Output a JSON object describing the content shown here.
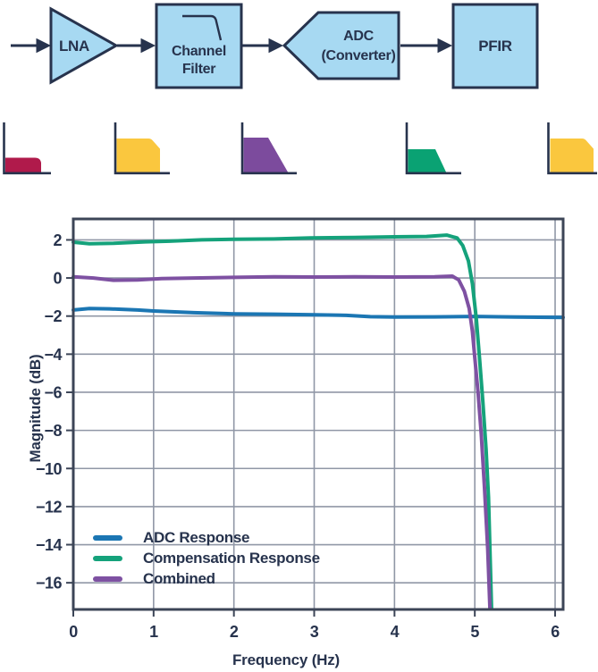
{
  "palette": {
    "block_fill": "#a7d9f2",
    "dark_navy": "#27334d",
    "plot_border": "#3c4557",
    "grid": "#9097a6"
  },
  "diagram": {
    "blocks": [
      {
        "id": "lna",
        "label": "LNA",
        "shape": "amplifier-triangle"
      },
      {
        "id": "channel-filter",
        "label_line1": "Channel",
        "label_line2": "Filter",
        "shape": "rect-with-lowpass-glyph"
      },
      {
        "id": "adc",
        "label_line1": "ADC",
        "label_line2": "(Converter)",
        "shape": "left-pointing-pentagon"
      },
      {
        "id": "pfir",
        "label": "PFIR",
        "shape": "rect"
      }
    ],
    "spectrum_icons": [
      {
        "name": "input-spectrum",
        "color": "#b01a4b",
        "shape": "low-flat-band"
      },
      {
        "name": "post-lna-spectrum",
        "color": "#fac73e",
        "shape": "wide-block-cut-corner"
      },
      {
        "name": "post-channel-filter-spectrum",
        "color": "#7c4b9d",
        "shape": "steep-trapezoid"
      },
      {
        "name": "post-adc-spectrum",
        "color": "#0aa273",
        "shape": "small-trapezoid"
      },
      {
        "name": "post-pfir-spectrum",
        "color": "#fac73e",
        "shape": "wide-block-cut-corner"
      }
    ]
  },
  "chart_data": {
    "type": "line",
    "title": "",
    "xlabel": "Frequency (Hz)",
    "ylabel": "Magnitude (dB)",
    "xlim": [
      0,
      6.1
    ],
    "ylim": [
      -17.4,
      3.1
    ],
    "x_ticks": [
      0,
      1,
      2,
      3,
      4,
      5,
      6
    ],
    "y_ticks": [
      2,
      0,
      -2,
      -4,
      -6,
      -8,
      -10,
      -12,
      -14,
      -16
    ],
    "grid": true,
    "legend_position": "lower-left",
    "series": [
      {
        "name": "ADC Response",
        "color": "#1b76b3",
        "points": [
          [
            0,
            -1.68
          ],
          [
            0.2,
            -1.6
          ],
          [
            0.45,
            -1.62
          ],
          [
            0.8,
            -1.68
          ],
          [
            1,
            -1.73
          ],
          [
            1.5,
            -1.82
          ],
          [
            2,
            -1.88
          ],
          [
            2.5,
            -1.9
          ],
          [
            3,
            -1.93
          ],
          [
            3.4,
            -1.96
          ],
          [
            3.7,
            -2.03
          ],
          [
            4,
            -2.05
          ],
          [
            4.5,
            -2.04
          ],
          [
            5,
            -2.02
          ],
          [
            5.5,
            -2.05
          ],
          [
            6.1,
            -2.07
          ]
        ]
      },
      {
        "name": "Compensation Response",
        "color": "#15a27b",
        "points": [
          [
            0,
            1.88
          ],
          [
            0.2,
            1.8
          ],
          [
            0.5,
            1.82
          ],
          [
            0.9,
            1.9
          ],
          [
            1.2,
            1.93
          ],
          [
            1.6,
            2.0
          ],
          [
            2,
            2.03
          ],
          [
            2.5,
            2.05
          ],
          [
            2.95,
            2.1
          ],
          [
            3.5,
            2.13
          ],
          [
            4,
            2.16
          ],
          [
            4.4,
            2.18
          ],
          [
            4.65,
            2.25
          ],
          [
            4.78,
            2.1
          ],
          [
            4.85,
            1.7
          ],
          [
            4.92,
            0.9
          ],
          [
            4.97,
            -0.3
          ],
          [
            5.02,
            -2.2
          ],
          [
            5.06,
            -4.3
          ],
          [
            5.1,
            -6.5
          ],
          [
            5.14,
            -9.0
          ],
          [
            5.17,
            -11.5
          ],
          [
            5.21,
            -17.5
          ]
        ]
      },
      {
        "name": "Combined",
        "color": "#7e51a2",
        "points": [
          [
            0,
            0.06
          ],
          [
            0.25,
            0.0
          ],
          [
            0.5,
            -0.12
          ],
          [
            0.8,
            -0.1
          ],
          [
            1.1,
            -0.03
          ],
          [
            1.5,
            0.0
          ],
          [
            2,
            0.03
          ],
          [
            2.5,
            0.06
          ],
          [
            3,
            0.05
          ],
          [
            3.5,
            0.06
          ],
          [
            4,
            0.05
          ],
          [
            4.5,
            0.06
          ],
          [
            4.72,
            0.1
          ],
          [
            4.8,
            -0.1
          ],
          [
            4.87,
            -0.7
          ],
          [
            4.93,
            -1.6
          ],
          [
            4.97,
            -2.8
          ],
          [
            5.0,
            -4.2
          ],
          [
            5.04,
            -6.0
          ],
          [
            5.08,
            -8.2
          ],
          [
            5.12,
            -11.0
          ],
          [
            5.16,
            -14.2
          ],
          [
            5.19,
            -17.5
          ]
        ]
      }
    ]
  }
}
